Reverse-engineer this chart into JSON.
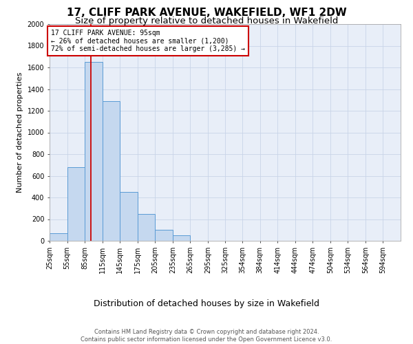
{
  "title": "17, CLIFF PARK AVENUE, WAKEFIELD, WF1 2DW",
  "subtitle": "Size of property relative to detached houses in Wakefield",
  "xlabel": "Distribution of detached houses by size in Wakefield",
  "ylabel": "Number of detached properties",
  "footer_line1": "Contains HM Land Registry data © Crown copyright and database right 2024.",
  "footer_line2": "Contains public sector information licensed under the Open Government Licence v3.0.",
  "bar_edges": [
    25,
    55,
    85,
    115,
    145,
    175,
    205,
    235,
    265,
    295,
    325,
    354,
    384,
    414,
    444,
    474,
    504,
    534,
    564,
    594,
    624
  ],
  "bar_heights": [
    70,
    680,
    1650,
    1290,
    450,
    250,
    100,
    50,
    0,
    0,
    0,
    0,
    0,
    0,
    0,
    0,
    0,
    0,
    0,
    0
  ],
  "bar_color": "#c5d8ef",
  "bar_edge_color": "#5a9bd5",
  "grid_color": "#c8d4e8",
  "axes_bg_color": "#e8eef8",
  "property_size": 95,
  "property_line_color": "#cc0000",
  "annotation_line1": "17 CLIFF PARK AVENUE: 95sqm",
  "annotation_line2": "← 26% of detached houses are smaller (1,200)",
  "annotation_line3": "72% of semi-detached houses are larger (3,285) →",
  "annotation_box_edgecolor": "#cc0000",
  "ylim_max": 2000,
  "yticks": [
    0,
    200,
    400,
    600,
    800,
    1000,
    1200,
    1400,
    1600,
    1800,
    2000
  ],
  "title_fontsize": 11,
  "subtitle_fontsize": 9.5,
  "xlabel_fontsize": 9,
  "ylabel_fontsize": 8,
  "tick_fontsize": 7,
  "annot_fontsize": 7
}
